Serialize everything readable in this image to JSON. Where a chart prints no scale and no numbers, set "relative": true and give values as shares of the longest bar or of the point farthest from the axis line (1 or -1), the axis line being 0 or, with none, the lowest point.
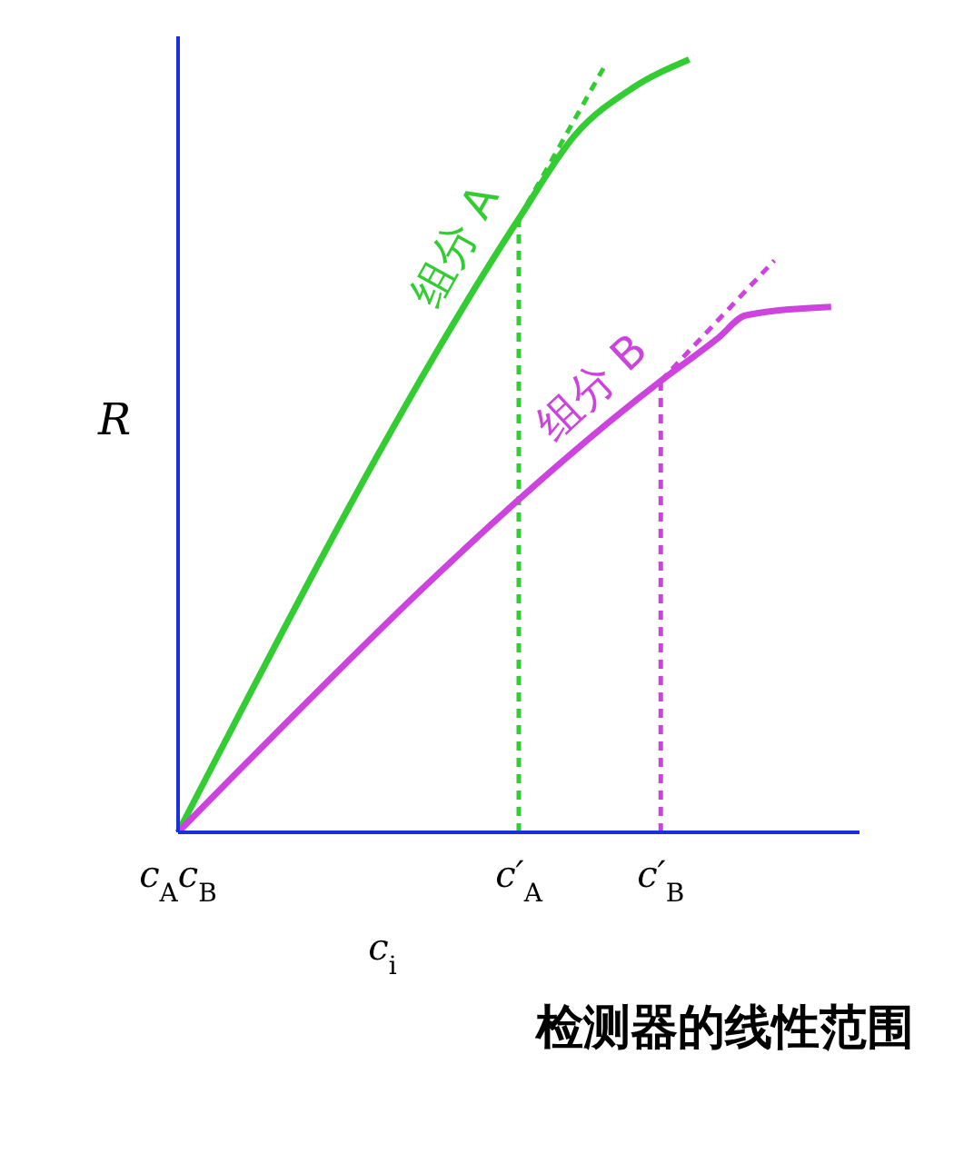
{
  "chart_data": {
    "type": "line",
    "title": "检测器的线性范围",
    "xlabel": "c$_{i}$",
    "ylabel": "R",
    "relative": true,
    "categories": [
      "c$_{A}$c$_{B}$",
      null,
      null,
      null,
      null,
      null,
      null,
      null,
      null,
      null,
      null,
      null,
      "c′$_{A}$",
      null,
      null,
      null,
      null,
      "c′$_{B}$",
      null,
      null,
      null,
      null,
      null,
      null,
      null
    ],
    "series": [
      {
        "name": "组分 A",
        "color": "#33cc33",
        "values": [
          0,
          null,
          null,
          null,
          null,
          null,
          null,
          null,
          null,
          null,
          null,
          null,
          0.794,
          null,
          0.903,
          null,
          0.963,
          null,
          1.0,
          null,
          null,
          null,
          null,
          null,
          null
        ]
      },
      {
        "color": "#33cc33",
        "line_style": "dashed",
        "values": [
          null,
          null,
          null,
          null,
          null,
          null,
          null,
          null,
          null,
          null,
          null,
          null,
          0.794,
          null,
          null,
          0.99,
          null,
          null,
          null,
          null,
          null,
          null,
          null,
          null,
          null
        ]
      },
      {
        "name": "组分 B",
        "color": "#cc44dd",
        "values": [
          0,
          null,
          null,
          null,
          null,
          null,
          null,
          null,
          null,
          null,
          null,
          null,
          null,
          null,
          null,
          null,
          null,
          0.584,
          null,
          0.639,
          0.669,
          null,
          null,
          0.68,
          null
        ]
      },
      {
        "color": "#cc44dd",
        "line_style": "dashed",
        "values": [
          null,
          null,
          null,
          null,
          null,
          null,
          null,
          null,
          null,
          null,
          null,
          null,
          null,
          null,
          null,
          null,
          null,
          0.584,
          null,
          null,
          null,
          0.74,
          null,
          null,
          null
        ]
      }
    ],
    "ref_lines": [
      {
        "axis": "x",
        "value": "c′$_{A}$",
        "color": "#33cc33",
        "line_style": "dashed"
      },
      {
        "axis": "x",
        "value": "c′$_{B}$",
        "color": "#cc44dd",
        "line_style": "dashed"
      }
    ]
  }
}
